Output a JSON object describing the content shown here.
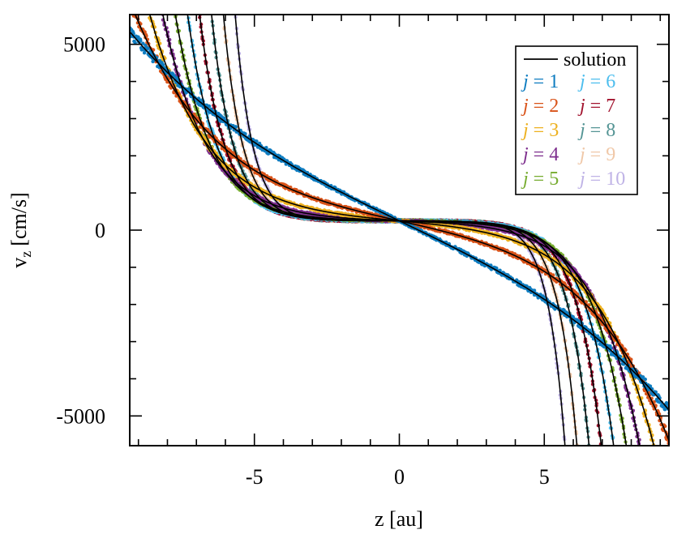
{
  "chart_data": {
    "type": "scatter",
    "xlabel": "z [au]",
    "ylabel_main": "v",
    "ylabel_sub": "z",
    "ylabel_unit": "[cm/s]",
    "xlim": [
      -9.3,
      9.3
    ],
    "ylim": [
      -5800,
      5800
    ],
    "x_ticks": [
      {
        "value": -5,
        "label": "-5"
      },
      {
        "value": 0,
        "label": "0"
      },
      {
        "value": 5,
        "label": "5"
      }
    ],
    "x_minor_step": 1,
    "y_ticks": [
      {
        "value": 5000,
        "label": "5000"
      },
      {
        "value": 0,
        "label": "0"
      },
      {
        "value": -5000,
        "label": "-5000"
      }
    ],
    "y_minor_step": 1000,
    "grid": false,
    "legend_position": "top-right",
    "solution_label": "solution",
    "solution_color": "#000000",
    "scatter_offset": 250,
    "series": [
      {
        "name": "j = 1",
        "j": 1,
        "color": "#0e7cc0"
      },
      {
        "name": "j = 2",
        "j": 2,
        "color": "#d95319"
      },
      {
        "name": "j = 3",
        "j": 3,
        "color": "#edb120"
      },
      {
        "name": "j = 4",
        "j": 4,
        "color": "#7e2f8e"
      },
      {
        "name": "j = 5",
        "j": 5,
        "color": "#77ac30"
      },
      {
        "name": "j = 6",
        "j": 6,
        "color": "#4dbeee"
      },
      {
        "name": "j = 7",
        "j": 7,
        "color": "#a2142f"
      },
      {
        "name": "j = 8",
        "j": 8,
        "color": "#559595"
      },
      {
        "name": "j = 9",
        "j": 9,
        "color": "#f0c8a8"
      },
      {
        "name": "j = 10",
        "j": 10,
        "color": "#bfb3e6"
      }
    ],
    "legend_layout": [
      [
        1,
        6
      ],
      [
        2,
        7
      ],
      [
        3,
        8
      ],
      [
        4,
        9
      ],
      [
        5,
        10
      ]
    ]
  }
}
